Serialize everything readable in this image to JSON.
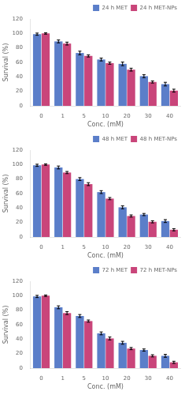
{
  "chart_data": [
    {
      "type": "bar",
      "xlabel": "Conc. (mM)",
      "ylabel": "Survival (%)",
      "categories": [
        "0",
        "1",
        "5",
        "10",
        "20",
        "30",
        "40"
      ],
      "series": [
        {
          "name": "24 h MET",
          "color": "#5B7EC9",
          "values": [
            99,
            89,
            73,
            64,
            58,
            41,
            30
          ],
          "errors": [
            1.5,
            2.0,
            2.5,
            2.0,
            2.5,
            2.0,
            2.5
          ]
        },
        {
          "name": "24 h MET-NPs",
          "color": "#C9457A",
          "values": [
            100,
            86,
            69,
            59,
            50,
            33,
            21
          ],
          "errors": [
            1.0,
            2.0,
            1.5,
            1.5,
            2.0,
            1.5,
            2.0
          ]
        }
      ],
      "ylim": [
        0,
        120
      ],
      "yticks": [
        0,
        20,
        40,
        60,
        80,
        100,
        120
      ],
      "grid": false,
      "legend": "upper right"
    },
    {
      "type": "bar",
      "xlabel": "Conc. (mM)",
      "ylabel": "Survival (%)",
      "categories": [
        "0",
        "1",
        "5",
        "10",
        "20",
        "30",
        "40"
      ],
      "series": [
        {
          "name": "48 h MET",
          "color": "#5B7EC9",
          "values": [
            99,
            96,
            80,
            62,
            41,
            31,
            22
          ],
          "errors": [
            1.5,
            2.0,
            2.0,
            2.0,
            2.0,
            1.5,
            2.0
          ]
        },
        {
          "name": "48 h MET-NPs",
          "color": "#C9457A",
          "values": [
            100,
            89,
            73,
            53,
            29,
            21,
            10
          ],
          "errors": [
            1.0,
            1.5,
            2.0,
            1.5,
            1.5,
            1.5,
            1.5
          ]
        }
      ],
      "ylim": [
        0,
        120
      ],
      "yticks": [
        0,
        20,
        40,
        60,
        80,
        100,
        120
      ],
      "grid": false,
      "legend": "upper right"
    },
    {
      "type": "bar",
      "xlabel": "Conc. (mM)",
      "ylabel": "Survival (%)",
      "categories": [
        "0",
        "1",
        "5",
        "10",
        "20",
        "30",
        "40"
      ],
      "series": [
        {
          "name": "72 h MET",
          "color": "#5B7EC9",
          "values": [
            99,
            84,
            72,
            48,
            35,
            25,
            17
          ],
          "errors": [
            1.5,
            2.0,
            2.0,
            2.0,
            2.0,
            1.5,
            2.0
          ]
        },
        {
          "name": "72 h MET-NPs",
          "color": "#C9457A",
          "values": [
            100,
            76,
            65,
            41,
            27,
            17,
            8
          ],
          "errors": [
            1.0,
            2.0,
            1.5,
            2.0,
            1.5,
            1.5,
            1.5
          ]
        }
      ],
      "ylim": [
        0,
        120
      ],
      "yticks": [
        0,
        20,
        40,
        60,
        80,
        100,
        120
      ],
      "grid": false,
      "legend": "upper right"
    }
  ]
}
